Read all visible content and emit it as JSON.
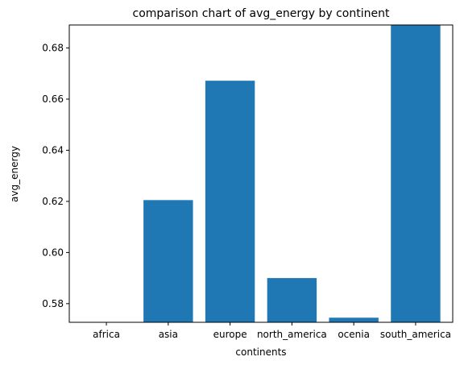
{
  "chart_data": {
    "type": "bar",
    "title": "comparison chart of avg_energy by continent",
    "xlabel": "continents",
    "ylabel": "avg_energy",
    "categories": [
      "africa",
      "asia",
      "europe",
      "north_america",
      "ocenia",
      "south_america"
    ],
    "values": [
      0.5725,
      0.6205,
      0.6672,
      0.59,
      0.5745,
      0.689
    ],
    "ylim": [
      0.5727,
      0.689
    ],
    "yticks": [
      0.58,
      0.6,
      0.62,
      0.64,
      0.66,
      0.68
    ],
    "ytick_labels": [
      "0.58",
      "0.60",
      "0.62",
      "0.64",
      "0.66",
      "0.68"
    ],
    "bar_color": "#1f77b4",
    "grid": false,
    "legend": false
  }
}
